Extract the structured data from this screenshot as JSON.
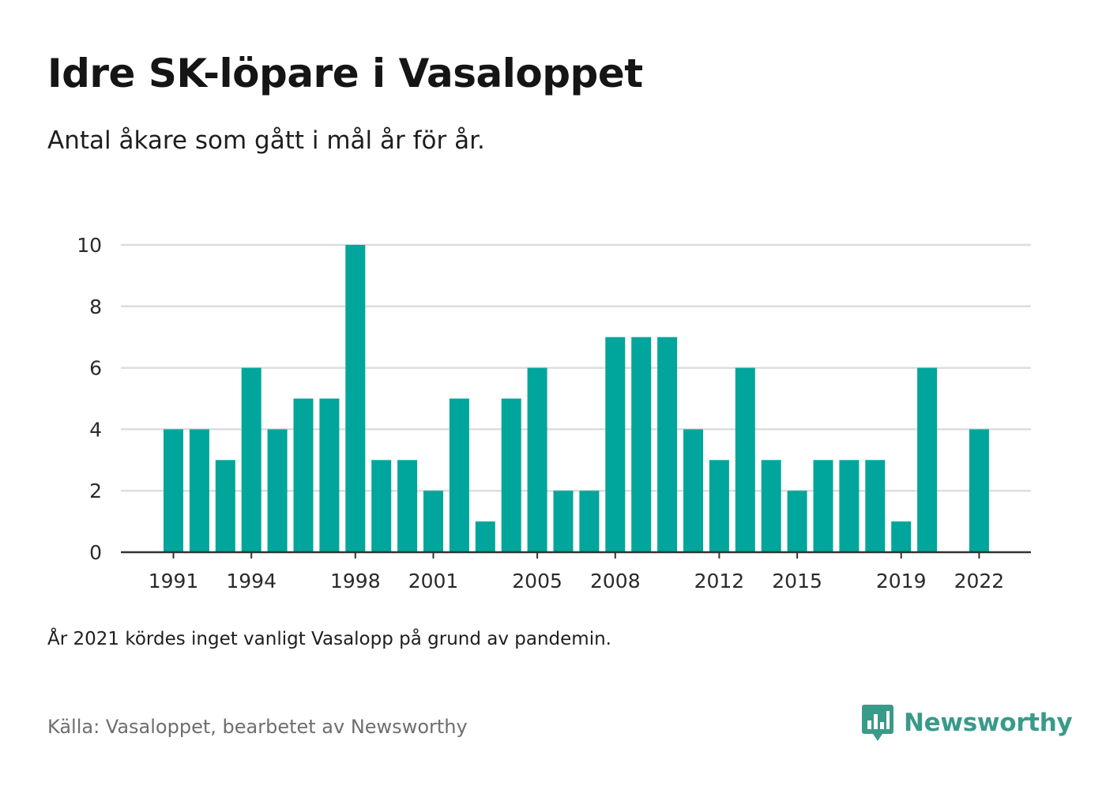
{
  "title": "Idre SK-löpare i Vasaloppet",
  "subtitle": "Antal åkare som gått i mål år för år.",
  "note": "År 2021 kördes inget vanligt Vasalopp på grund av pandemin.",
  "source": "Källa: Vasaloppet, bearbetet av Newsworthy",
  "brand": {
    "name": "Newsworthy",
    "icon": "newsworthy-logo-icon"
  },
  "colors": {
    "bar": "#00a69b",
    "grid": "#dddddd",
    "axis": "#333333",
    "brand": "#3a9a8a"
  },
  "chart_data": {
    "type": "bar",
    "categories": [
      "1991",
      "1992",
      "1993",
      "1994",
      "1995",
      "1996",
      "1997",
      "1998",
      "1999",
      "2000",
      "2001",
      "2002",
      "2003",
      "2004",
      "2005",
      "2006",
      "2007",
      "2008",
      "2009",
      "2010",
      "2011",
      "2012",
      "2013",
      "2014",
      "2015",
      "2016",
      "2017",
      "2018",
      "2019",
      "2020",
      "2021",
      "2022"
    ],
    "values": [
      4,
      4,
      3,
      6,
      4,
      5,
      5,
      10,
      3,
      3,
      2,
      5,
      1,
      5,
      6,
      2,
      2,
      7,
      7,
      7,
      4,
      3,
      6,
      3,
      2,
      3,
      3,
      3,
      1,
      6,
      null,
      4
    ],
    "x_tick_labels": [
      "1991",
      "1994",
      "1998",
      "2001",
      "2005",
      "2008",
      "2012",
      "2015",
      "2019",
      "2022"
    ],
    "y_ticks": [
      0,
      2,
      4,
      6,
      8,
      10
    ],
    "ylim": [
      0,
      10
    ],
    "xlabel": "",
    "ylabel": "",
    "grid": true,
    "legend": "none"
  }
}
